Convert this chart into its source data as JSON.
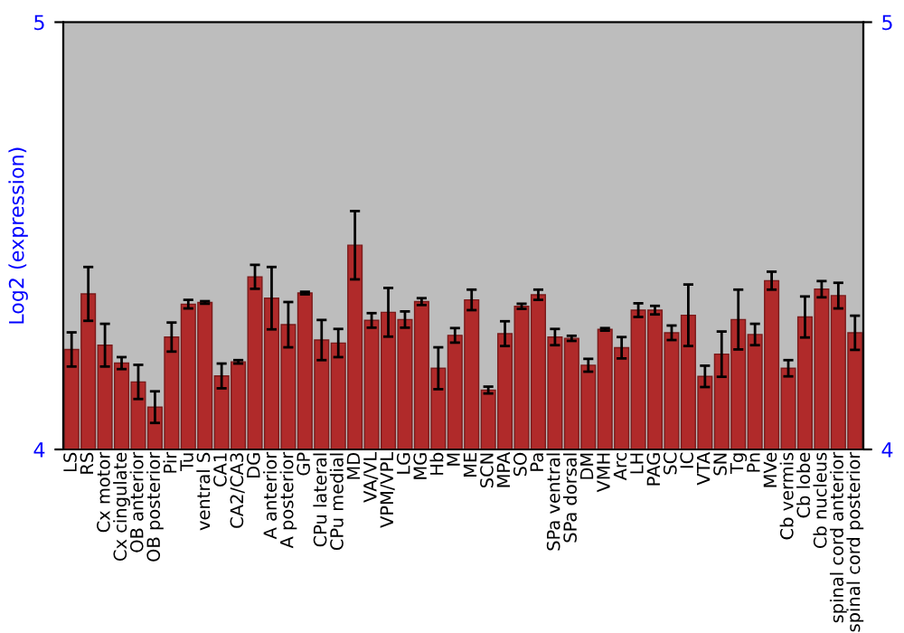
{
  "chart_data": {
    "type": "bar",
    "ylabel": "Log2 (expression)",
    "categories": [
      "LS",
      "RS",
      "Cx motor",
      "Cx cingulate",
      "OB anterior",
      "OB posterior",
      "Pir",
      "Tu",
      "ventral S",
      "CA1",
      "CA2/CA3",
      "DG",
      "A anterior",
      "A posterior",
      "GP",
      "CPu lateral",
      "CPu medial",
      "MD",
      "VA/VL",
      "VPM/VPL",
      "LG",
      "MG",
      "Hb",
      "M",
      "ME",
      "SCN",
      "MPA",
      "SO",
      "Pa",
      "SPa ventral",
      "SPa dorsal",
      "DM",
      "VMH",
      "Arc",
      "LH",
      "PAG",
      "SC",
      "IC",
      "VTA",
      "SN",
      "Tg",
      "Pn",
      "MVe",
      "Cb vermis",
      "Cb lobe",
      "Cb nucleus",
      "spinal cord anterior",
      "spinal cord posterior"
    ],
    "values": [
      4.234,
      4.364,
      4.244,
      4.202,
      4.158,
      4.099,
      4.263,
      4.34,
      4.344,
      4.172,
      4.205,
      4.404,
      4.354,
      4.292,
      4.366,
      4.256,
      4.249,
      4.478,
      4.302,
      4.321,
      4.304,
      4.346,
      4.19,
      4.267,
      4.35,
      4.139,
      4.271,
      4.335,
      4.362,
      4.263,
      4.26,
      4.197,
      4.281,
      4.238,
      4.326,
      4.326,
      4.273,
      4.314,
      4.171,
      4.223,
      4.304,
      4.269,
      4.395,
      4.19,
      4.31,
      4.375,
      4.36,
      4.273
    ],
    "errors": [
      0.04,
      0.063,
      0.05,
      0.014,
      0.04,
      0.037,
      0.034,
      0.01,
      0.003,
      0.029,
      0.004,
      0.028,
      0.073,
      0.053,
      0.003,
      0.047,
      0.033,
      0.08,
      0.017,
      0.057,
      0.019,
      0.008,
      0.049,
      0.017,
      0.024,
      0.008,
      0.029,
      0.006,
      0.012,
      0.019,
      0.006,
      0.015,
      0.003,
      0.025,
      0.016,
      0.01,
      0.017,
      0.072,
      0.025,
      0.053,
      0.07,
      0.025,
      0.021,
      0.019,
      0.048,
      0.019,
      0.03,
      0.04
    ],
    "color": "#b02a2a",
    "ylim": [
      4,
      5
    ],
    "yticks": [
      4,
      5
    ],
    "y2lim": [
      4,
      5
    ],
    "y2ticks": [
      4,
      5
    ],
    "grid": false
  }
}
